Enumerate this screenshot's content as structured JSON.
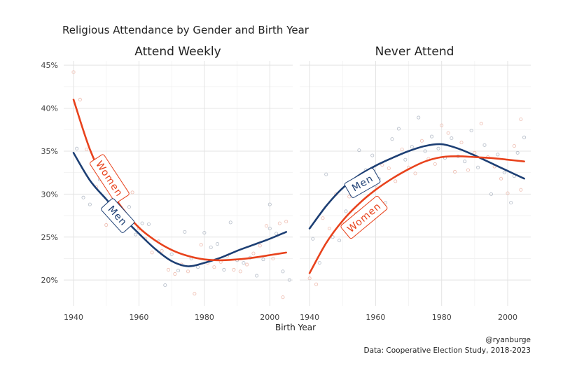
{
  "chart_data": {
    "type": "line",
    "title": "Religious Attendance by Gender and Birth Year",
    "xlabel": "Birth Year",
    "xlim": [
      1937,
      2007
    ],
    "ylim": [
      17,
      45.5
    ],
    "x_ticks": [
      1940,
      1960,
      1980,
      2000
    ],
    "y_ticks": [
      20,
      25,
      30,
      35,
      40,
      45
    ],
    "y_tick_labels": [
      "20%",
      "25%",
      "30%",
      "35%",
      "40%",
      "45%"
    ],
    "grid": true,
    "caption": [
      "@ryanburge",
      "Data: Cooperative Election Study, 2018-2023"
    ],
    "colors": {
      "Men": "#1d3f74",
      "Women": "#e8421c"
    },
    "panels": [
      {
        "title": "Attend Weekly",
        "series": [
          {
            "name": "Men",
            "x": [
              1940,
              1945,
              1950,
              1955,
              1960,
              1965,
              1970,
              1975,
              1980,
              1985,
              1990,
              1995,
              2000,
              2005
            ],
            "y": [
              34.8,
              31.6,
              29.4,
              27.3,
              25.4,
              23.6,
              22.2,
              21.6,
              22.0,
              22.6,
              23.4,
              24.1,
              24.8,
              25.6
            ]
          },
          {
            "name": "Women",
            "x": [
              1940,
              1945,
              1950,
              1955,
              1960,
              1965,
              1970,
              1975,
              1980,
              1985,
              1990,
              1995,
              2000,
              2005
            ],
            "y": [
              41.0,
              35.2,
              31.2,
              28.3,
              26.1,
              24.6,
              23.5,
              22.8,
              22.4,
              22.3,
              22.4,
              22.6,
              22.9,
              23.2
            ]
          }
        ],
        "labels": [
          {
            "series": "Women",
            "text": "Women",
            "x": 1951,
            "y": 31.8
          },
          {
            "series": "Men",
            "text": "Men",
            "x": 1953.5,
            "y": 27.5
          }
        ],
        "points": [
          [
            1940,
            44.2
          ],
          [
            1941,
            35.3
          ],
          [
            1942,
            41.0
          ],
          [
            1943,
            29.6
          ],
          [
            1944,
            35.2
          ],
          [
            1945,
            28.8
          ],
          [
            1947,
            30.8
          ],
          [
            1948,
            31.7
          ],
          [
            1950,
            26.4
          ],
          [
            1951,
            29.0
          ],
          [
            1953,
            27.6
          ],
          [
            1954,
            29.9
          ],
          [
            1956,
            27.0
          ],
          [
            1957,
            28.5
          ],
          [
            1958,
            30.2
          ],
          [
            1959,
            25.3
          ],
          [
            1960,
            26.0
          ],
          [
            1961,
            26.6
          ],
          [
            1962,
            24.8
          ],
          [
            1963,
            26.5
          ],
          [
            1964,
            23.2
          ],
          [
            1966,
            24.5
          ],
          [
            1967,
            23.4
          ],
          [
            1968,
            19.4
          ],
          [
            1969,
            21.2
          ],
          [
            1970,
            23.0
          ],
          [
            1971,
            20.7
          ],
          [
            1972,
            21.1
          ],
          [
            1973,
            21.8
          ],
          [
            1974,
            25.6
          ],
          [
            1975,
            21.0
          ],
          [
            1976,
            22.5
          ],
          [
            1977,
            18.4
          ],
          [
            1978,
            21.5
          ],
          [
            1979,
            24.1
          ],
          [
            1980,
            25.5
          ],
          [
            1981,
            22.0
          ],
          [
            1982,
            23.8
          ],
          [
            1983,
            21.5
          ],
          [
            1984,
            24.2
          ],
          [
            1985,
            22.1
          ],
          [
            1986,
            21.2
          ],
          [
            1987,
            22.8
          ],
          [
            1988,
            26.7
          ],
          [
            1989,
            21.2
          ],
          [
            1990,
            22.3
          ],
          [
            1991,
            21.0
          ],
          [
            1992,
            22.0
          ],
          [
            1993,
            21.8
          ],
          [
            1994,
            22.6
          ],
          [
            1995,
            23.1
          ],
          [
            1996,
            20.5
          ],
          [
            1997,
            24.0
          ],
          [
            1998,
            22.4
          ],
          [
            1999,
            26.3
          ],
          [
            2000,
            28.8
          ],
          [
            2001,
            22.5
          ],
          [
            2002,
            25.4
          ],
          [
            2003,
            26.6
          ],
          [
            2004,
            21.0
          ],
          [
            2005,
            26.8
          ],
          [
            2006,
            20.0
          ],
          [
            2004,
            18.0
          ],
          [
            2000,
            26.0
          ]
        ]
      },
      {
        "title": "Never Attend",
        "series": [
          {
            "name": "Men",
            "x": [
              1940,
              1945,
              1950,
              1955,
              1960,
              1965,
              1970,
              1975,
              1980,
              1985,
              1990,
              1995,
              2000,
              2005
            ],
            "y": [
              26.0,
              28.6,
              30.7,
              32.2,
              33.3,
              34.2,
              35.0,
              35.6,
              35.8,
              35.3,
              34.5,
              33.6,
              32.7,
              31.8
            ]
          },
          {
            "name": "Women",
            "x": [
              1940,
              1945,
              1950,
              1955,
              1960,
              1965,
              1970,
              1975,
              1980,
              1985,
              1990,
              1995,
              2000,
              2005
            ],
            "y": [
              20.8,
              24.3,
              26.9,
              28.9,
              30.5,
              31.8,
              32.9,
              33.8,
              34.3,
              34.4,
              34.3,
              34.2,
              34.0,
              33.8
            ]
          }
        ],
        "labels": [
          {
            "series": "Men",
            "text": "Men",
            "x": 1956,
            "y": 31.3
          },
          {
            "series": "Women",
            "text": "Women",
            "x": 1956.5,
            "y": 27.3
          }
        ],
        "points": [
          [
            1940,
            20.2
          ],
          [
            1941,
            24.8
          ],
          [
            1942,
            19.5
          ],
          [
            1943,
            22.0
          ],
          [
            1944,
            27.2
          ],
          [
            1945,
            32.3
          ],
          [
            1946,
            26.0
          ],
          [
            1947,
            25.0
          ],
          [
            1948,
            30.0
          ],
          [
            1949,
            24.6
          ],
          [
            1950,
            26.6
          ],
          [
            1951,
            28.0
          ],
          [
            1952,
            29.7
          ],
          [
            1953,
            30.5
          ],
          [
            1954,
            27.7
          ],
          [
            1955,
            35.1
          ],
          [
            1956,
            30.7
          ],
          [
            1957,
            32.8
          ],
          [
            1958,
            28.6
          ],
          [
            1959,
            34.5
          ],
          [
            1960,
            31.0
          ],
          [
            1961,
            31.8
          ],
          [
            1962,
            33.4
          ],
          [
            1963,
            29.0
          ],
          [
            1964,
            33.0
          ],
          [
            1965,
            36.4
          ],
          [
            1966,
            31.5
          ],
          [
            1967,
            37.6
          ],
          [
            1968,
            35.2
          ],
          [
            1969,
            34.0
          ],
          [
            1970,
            33.1
          ],
          [
            1971,
            35.5
          ],
          [
            1972,
            32.4
          ],
          [
            1973,
            38.9
          ],
          [
            1974,
            36.2
          ],
          [
            1975,
            35.0
          ],
          [
            1976,
            34.1
          ],
          [
            1977,
            36.7
          ],
          [
            1978,
            33.5
          ],
          [
            1979,
            35.3
          ],
          [
            1980,
            38.0
          ],
          [
            1981,
            34.2
          ],
          [
            1982,
            37.1
          ],
          [
            1983,
            36.5
          ],
          [
            1984,
            32.6
          ],
          [
            1985,
            34.4
          ],
          [
            1986,
            36.0
          ],
          [
            1987,
            33.8
          ],
          [
            1988,
            32.8
          ],
          [
            1989,
            37.4
          ],
          [
            1990,
            34.8
          ],
          [
            1991,
            33.1
          ],
          [
            1992,
            38.2
          ],
          [
            1993,
            35.7
          ],
          [
            1994,
            34.3
          ],
          [
            1995,
            30.0
          ],
          [
            1996,
            33.2
          ],
          [
            1997,
            34.6
          ],
          [
            1998,
            31.8
          ],
          [
            1999,
            32.5
          ],
          [
            2000,
            30.1
          ],
          [
            2001,
            29.0
          ],
          [
            2002,
            35.6
          ],
          [
            2003,
            34.8
          ],
          [
            2004,
            38.7
          ],
          [
            2005,
            36.6
          ],
          [
            2004,
            30.5
          ],
          [
            2002,
            32.1
          ]
        ]
      }
    ]
  }
}
